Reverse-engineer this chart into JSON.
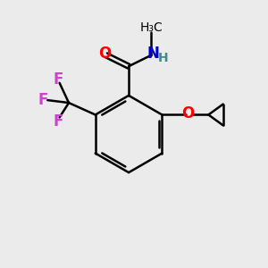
{
  "background_color": "#ebebeb",
  "bond_color": "#000000",
  "bond_width": 1.8,
  "figsize": [
    3.0,
    3.0
  ],
  "dpi": 100,
  "atom_colors": {
    "O": "#ff0000",
    "N": "#0000cc",
    "F": "#cc44cc",
    "H": "#448888",
    "C": "#000000"
  },
  "font_size": 12,
  "small_font_size": 10
}
